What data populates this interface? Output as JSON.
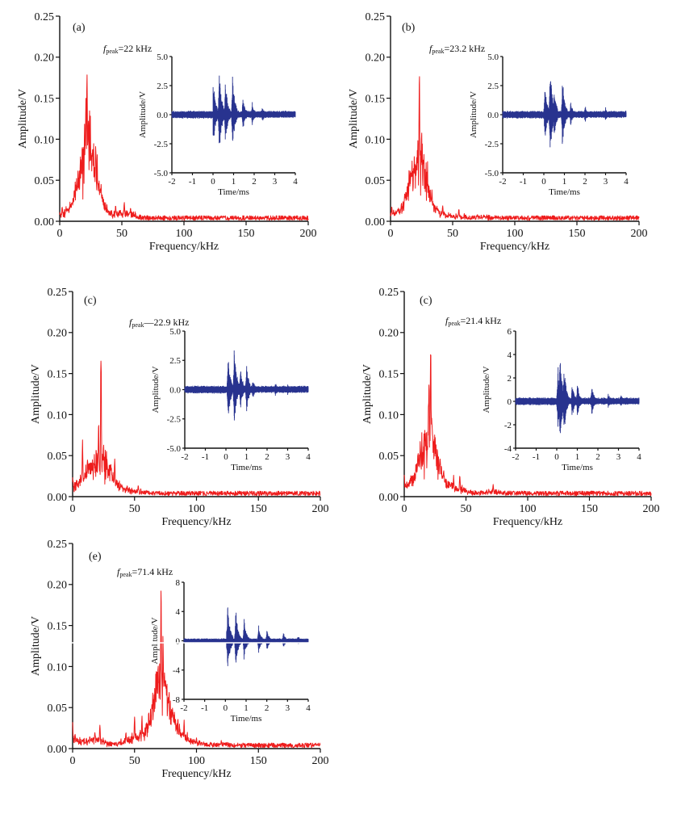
{
  "chart_data": [
    {
      "type": "line",
      "panel_label": "(a)",
      "annotation": {
        "prefix": "f",
        "subscript": "peak",
        "text": "=22 kHz"
      },
      "xlabel": "Frequency/kHz",
      "ylabel": "Amplitude/V",
      "xlim": [
        0,
        200
      ],
      "ylim": [
        0,
        0.25
      ],
      "xticks": [
        "0",
        "50",
        "100",
        "150",
        "200"
      ],
      "yticks": [
        "0.00",
        "0.05",
        "0.10",
        "0.15",
        "0.20",
        "0.25"
      ],
      "series": [
        {
          "name": "spectrum",
          "color": "#ee1c1c",
          "peaks": [
            [
              2,
              0.02
            ],
            [
              6,
              0.015
            ],
            [
              13,
              0.042
            ],
            [
              16,
              0.03
            ],
            [
              20,
              0.075
            ],
            [
              21,
              0.16
            ],
            [
              22,
              0.2
            ],
            [
              23,
              0.13
            ],
            [
              24,
              0.147
            ],
            [
              26,
              0.05
            ],
            [
              27,
              0.07
            ],
            [
              29,
              0.045
            ],
            [
              33,
              0.035
            ],
            [
              45,
              0.02
            ],
            [
              52,
              0.024
            ],
            [
              57,
              0.018
            ]
          ],
          "noise_floor": 0.004
        }
      ],
      "inset": {
        "xlabel": "Time/ms",
        "ylabel": "Amplitude/V",
        "xlim": [
          -2,
          4
        ],
        "ylim": [
          -5,
          5
        ],
        "xticks": [
          "-2",
          "-1",
          "0",
          "1",
          "2",
          "3",
          "4"
        ],
        "yticks": [
          "-5.0",
          "-2.5",
          "0.0",
          "2.5",
          "5.0"
        ],
        "color": "#28338f",
        "onset_ms": 0,
        "bursts": [
          [
            0.0,
            3.6
          ],
          [
            0.3,
            4.2
          ],
          [
            0.6,
            3.2
          ],
          [
            0.95,
            3.9
          ],
          [
            1.45,
            1.7
          ],
          [
            1.9,
            1.2
          ],
          [
            2.4,
            0.8
          ],
          [
            3.0,
            0.5
          ]
        ],
        "noise_level": 0.35
      }
    },
    {
      "type": "line",
      "panel_label": "(b)",
      "annotation": {
        "prefix": "f",
        "subscript": "peak",
        "text": "=23.2 kHz"
      },
      "xlabel": "Frequency/kHz",
      "ylabel": "Amplitude/V",
      "xlim": [
        0,
        200
      ],
      "ylim": [
        0,
        0.25
      ],
      "xticks": [
        "0",
        "50",
        "100",
        "150",
        "200"
      ],
      "yticks": [
        "0.00",
        "0.05",
        "0.10",
        "0.15",
        "0.20",
        "0.25"
      ],
      "series": [
        {
          "name": "spectrum",
          "color": "#ee1c1c",
          "peaks": [
            [
              1,
              0.02
            ],
            [
              10,
              0.024
            ],
            [
              15,
              0.065
            ],
            [
              17,
              0.05
            ],
            [
              20,
              0.04
            ],
            [
              22,
              0.1
            ],
            [
              23.2,
              0.19
            ],
            [
              25,
              0.12
            ],
            [
              27,
              0.065
            ],
            [
              31,
              0.045
            ],
            [
              42,
              0.022
            ],
            [
              55,
              0.016
            ],
            [
              75,
              0.008
            ]
          ],
          "noise_floor": 0.004
        }
      ],
      "inset": {
        "xlabel": "Time/ms",
        "ylabel": "Amplitude/V",
        "xlim": [
          -2,
          4
        ],
        "ylim": [
          -5,
          5
        ],
        "xticks": [
          "-2",
          "-1",
          "0",
          "1",
          "2",
          "3",
          "4"
        ],
        "yticks": [
          "-5.0",
          "-2.5",
          "0.0",
          "2.5",
          "5.0"
        ],
        "color": "#28338f",
        "onset_ms": 0,
        "bursts": [
          [
            0.05,
            3.0
          ],
          [
            0.3,
            4.6
          ],
          [
            0.5,
            2.5
          ],
          [
            0.9,
            3.5
          ],
          [
            1.3,
            1.2
          ],
          [
            2.0,
            0.9
          ],
          [
            3.0,
            0.7
          ]
        ],
        "noise_level": 0.35
      }
    },
    {
      "type": "line",
      "panel_label": "(c)",
      "annotation": {
        "prefix": "f",
        "subscript": "peak",
        "text": "—22.9 kHz"
      },
      "xlabel": "Frequency/kHz",
      "ylabel": "Amplitude/V",
      "xlim": [
        0,
        200
      ],
      "ylim": [
        0,
        0.25
      ],
      "xticks": [
        "0",
        "50",
        "100",
        "150",
        "200"
      ],
      "yticks": [
        "0.00",
        "0.05",
        "0.10",
        "0.15",
        "0.20",
        "0.25"
      ],
      "series": [
        {
          "name": "spectrum",
          "color": "#ee1c1c",
          "peaks": [
            [
              0,
              0.025
            ],
            [
              8,
              0.07
            ],
            [
              12,
              0.052
            ],
            [
              15,
              0.035
            ],
            [
              21,
              0.1
            ],
            [
              22.9,
              0.19
            ],
            [
              25,
              0.068
            ],
            [
              29,
              0.04
            ],
            [
              34,
              0.047
            ],
            [
              44,
              0.015
            ],
            [
              53,
              0.014
            ]
          ],
          "noise_floor": 0.004
        }
      ],
      "inset": {
        "xlabel": "Time/ms",
        "ylabel": "Amplitude/V",
        "xlim": [
          -2,
          4
        ],
        "ylim": [
          -5,
          5
        ],
        "xticks": [
          "-2",
          "-1",
          "0",
          "1",
          "2",
          "3",
          "4"
        ],
        "yticks": [
          "-5.0",
          "-2.5",
          "0.0",
          "2.5",
          "5.0"
        ],
        "color": "#28338f",
        "onset_ms": 0,
        "bursts": [
          [
            0.1,
            3.5
          ],
          [
            0.4,
            4.2
          ],
          [
            0.7,
            2.3
          ],
          [
            1.0,
            2.5
          ],
          [
            1.3,
            1.0
          ],
          [
            2.4,
            0.7
          ],
          [
            3.0,
            0.6
          ]
        ],
        "noise_level": 0.35
      }
    },
    {
      "type": "line",
      "panel_label": "(c)",
      "annotation": {
        "prefix": "f",
        "subscript": "peak",
        "text": "=21.4 kHz"
      },
      "xlabel": "Frequency/kHz",
      "ylabel": "Amplitude/V",
      "xlim": [
        0,
        200
      ],
      "ylim": [
        0,
        0.25
      ],
      "xticks": [
        "0",
        "50",
        "100",
        "150",
        "200"
      ],
      "yticks": [
        "0.00",
        "0.05",
        "0.10",
        "0.15",
        "0.20",
        "0.25"
      ],
      "series": [
        {
          "name": "spectrum",
          "color": "#ee1c1c",
          "peaks": [
            [
              0,
              0.03
            ],
            [
              5,
              0.02
            ],
            [
              11,
              0.06
            ],
            [
              13,
              0.072
            ],
            [
              18,
              0.035
            ],
            [
              20,
              0.158
            ],
            [
              21.4,
              0.2
            ],
            [
              22.5,
              0.1
            ],
            [
              26,
              0.038
            ],
            [
              31,
              0.03
            ],
            [
              40,
              0.027
            ],
            [
              45,
              0.027
            ],
            [
              72,
              0.016
            ]
          ],
          "noise_floor": 0.004
        }
      ],
      "inset": {
        "xlabel": "Time/ms",
        "ylabel": "Amplitude/V",
        "xlim": [
          -2,
          4
        ],
        "ylim": [
          -4,
          6
        ],
        "xticks": [
          "-2",
          "-1",
          "0",
          "1",
          "2",
          "3",
          "4"
        ],
        "yticks": [
          "-4",
          "-2",
          "0",
          "2",
          "4",
          "6"
        ],
        "color": "#28338f",
        "onset_ms": 0,
        "bursts": [
          [
            0.05,
            3.4
          ],
          [
            0.15,
            4.9
          ],
          [
            0.35,
            3.6
          ],
          [
            0.75,
            1.9
          ],
          [
            1.0,
            1.7
          ],
          [
            1.7,
            1.5
          ],
          [
            2.5,
            0.8
          ],
          [
            3.1,
            0.7
          ]
        ],
        "noise_level": 0.35
      }
    },
    {
      "type": "line",
      "panel_label": "(e)",
      "annotation": {
        "prefix": "f",
        "subscript": "peak",
        "text": "=71.4 kHz"
      },
      "xlabel": "Frequency/kHz",
      "ylabel": "Amplitude/V",
      "xlim": [
        0,
        200
      ],
      "ylim": [
        0,
        0.25
      ],
      "xticks": [
        "0",
        "50",
        "100",
        "150",
        "200"
      ],
      "yticks": [
        "0.00",
        "0.05",
        "0.10",
        "0.15",
        "0.20",
        "0.25"
      ],
      "series": [
        {
          "name": "spectrum",
          "color": "#ee1c1c",
          "peaks": [
            [
              0,
              0.035
            ],
            [
              2,
              0.02
            ],
            [
              14,
              0.015
            ],
            [
              18,
              0.022
            ],
            [
              22,
              0.03
            ],
            [
              43,
              0.022
            ],
            [
              50,
              0.04
            ],
            [
              56,
              0.04
            ],
            [
              64,
              0.057
            ],
            [
              68,
              0.078
            ],
            [
              69,
              0.11
            ],
            [
              71.4,
              0.2
            ],
            [
              73,
              0.15
            ],
            [
              75,
              0.1
            ],
            [
              80,
              0.05
            ],
            [
              85,
              0.04
            ],
            [
              90,
              0.035
            ],
            [
              100,
              0.014
            ],
            [
              120,
              0.01
            ]
          ],
          "noise_floor": 0.004
        }
      ],
      "inset": {
        "xlabel": "Time/ms",
        "ylabel": "Amplitude/V",
        "xlim": [
          -2,
          4
        ],
        "ylim": [
          -8,
          8
        ],
        "xticks": [
          "-2",
          "-1",
          "0",
          "1",
          "2",
          "3",
          "4"
        ],
        "yticks": [
          "-8",
          "-4",
          "0",
          "4",
          "8"
        ],
        "color": "#28338f",
        "onset_ms": 0,
        "bursts": [
          [
            0.1,
            6.0
          ],
          [
            0.5,
            5.0
          ],
          [
            0.9,
            3.5
          ],
          [
            1.6,
            2.5
          ],
          [
            2.0,
            1.8
          ],
          [
            2.8,
            1.3
          ],
          [
            3.5,
            0.8
          ]
        ],
        "noise_level": 0.35
      }
    }
  ]
}
